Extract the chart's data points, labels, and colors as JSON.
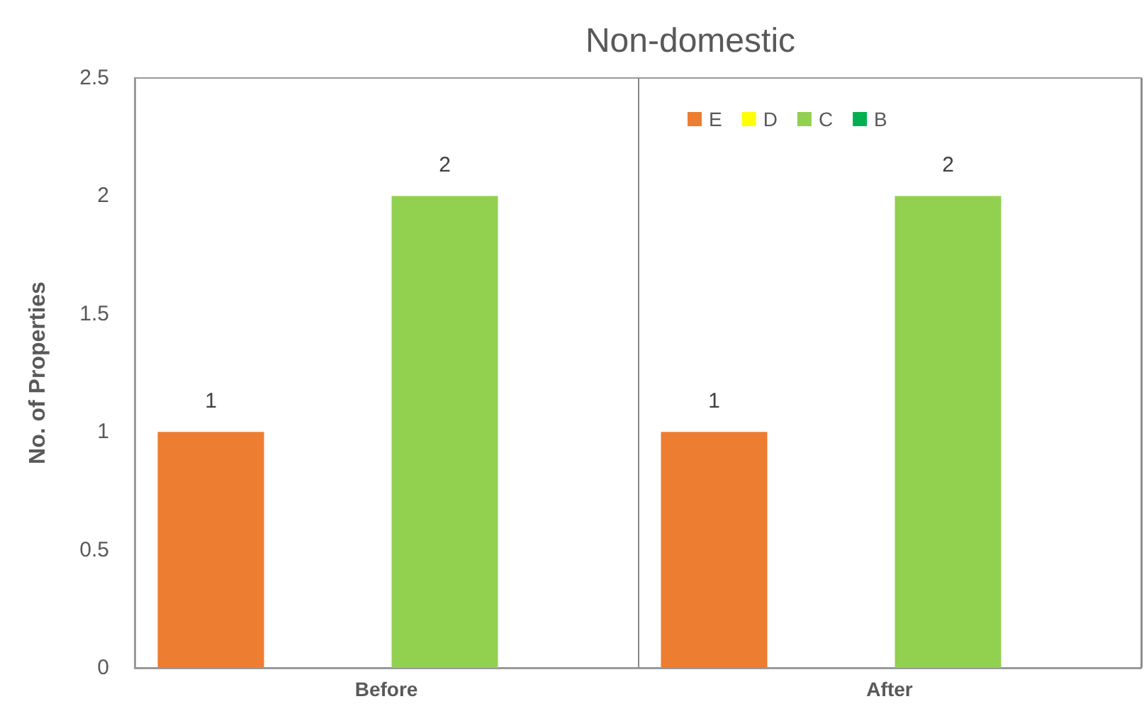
{
  "chart_data": {
    "type": "bar",
    "title": "Non-domestic",
    "ylabel": "No. of Properties",
    "categories": [
      "Before",
      "After"
    ],
    "series": [
      {
        "name": "E",
        "color": "#ed7d31",
        "values": [
          1,
          1
        ]
      },
      {
        "name": "D",
        "color": "#ffff00",
        "values": [
          null,
          null
        ]
      },
      {
        "name": "C",
        "color": "#92d050",
        "values": [
          2,
          2
        ]
      },
      {
        "name": "B",
        "color": "#00b050",
        "values": [
          null,
          null
        ]
      }
    ],
    "ylim": [
      0,
      2.5
    ],
    "yticks": [
      0,
      0.5,
      1,
      1.5,
      2,
      2.5
    ],
    "grid": "x",
    "legend": "top right",
    "data_labels": true
  }
}
